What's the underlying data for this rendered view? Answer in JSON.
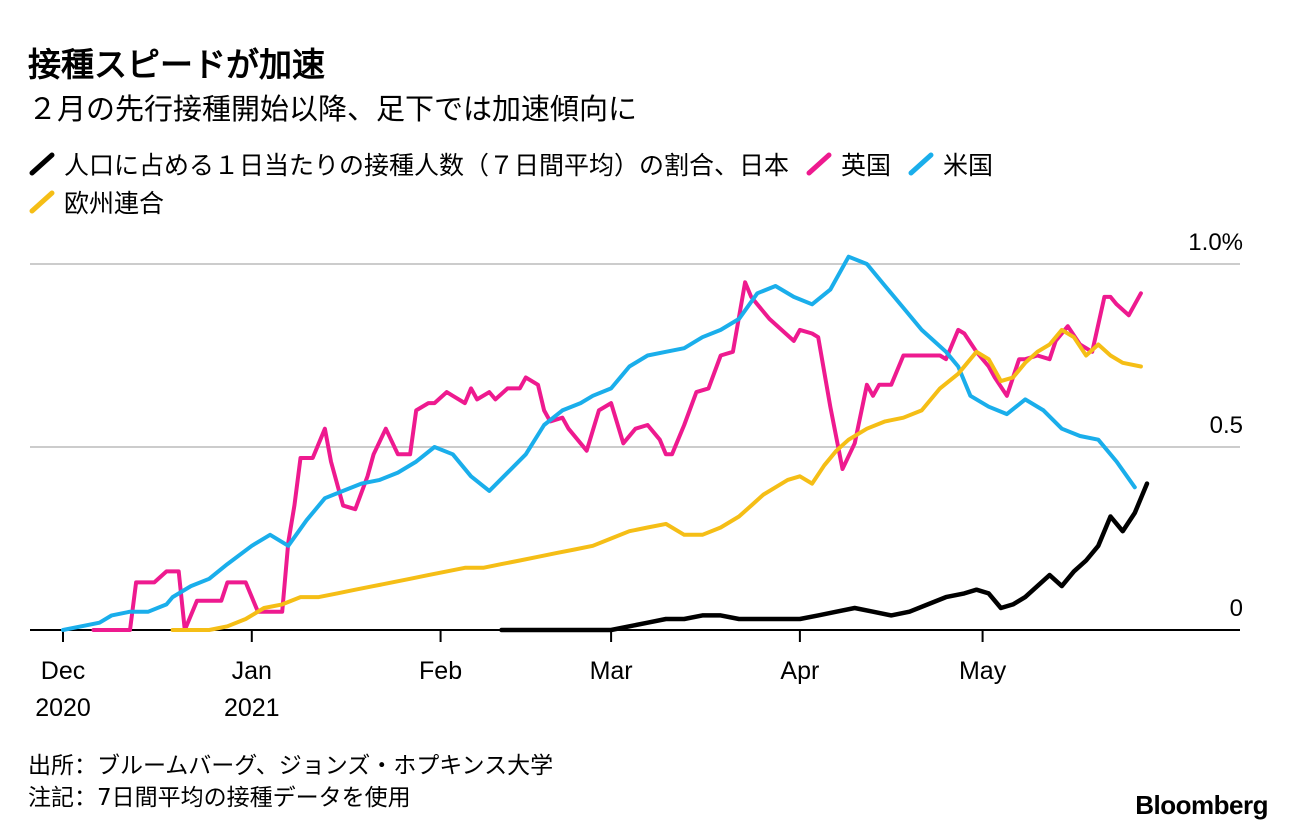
{
  "title": "接種スピードが加速",
  "subtitle": "２月の先行接種開始以降、足下では加速傾向に",
  "legend": {
    "intro": "人口に占める１日当たりの接種人数（７日間平均）の割合、日本",
    "uk": "英国",
    "us": "米国",
    "eu": "欧州連合"
  },
  "colors": {
    "japan": "#000000",
    "uk": "#EE1A8F",
    "us": "#1AAEEB",
    "eu": "#F5BE16",
    "grid": "#cccccc",
    "axis": "#000000"
  },
  "footer": {
    "source": "出所：ブルームバーグ、ジョンズ・ホプキンス大学",
    "note": "注記：7日間平均の接種データを使用"
  },
  "brand": "Bloomberg",
  "chart_data": {
    "type": "line",
    "title": "接種スピードが加速",
    "ylabel": "人口に占める１日当たりの接種人数（７日間平均）の割合",
    "ylim": [
      0,
      1.0
    ],
    "x_unit": "days since 2020-12-01",
    "xlim": [
      0,
      180
    ],
    "y_ticks": [
      {
        "value": 1.0,
        "label": "1.0%"
      },
      {
        "value": 0.5,
        "label": "0.5"
      },
      {
        "value": 0,
        "label": "0"
      }
    ],
    "x_ticks": [
      {
        "day": 0,
        "label": "Dec",
        "sub": "2020"
      },
      {
        "day": 31,
        "label": "Jan",
        "sub": "2021"
      },
      {
        "day": 62,
        "label": "Feb",
        "sub": ""
      },
      {
        "day": 90,
        "label": "Mar",
        "sub": ""
      },
      {
        "day": 121,
        "label": "Apr",
        "sub": ""
      },
      {
        "day": 151,
        "label": "May",
        "sub": ""
      }
    ],
    "series": [
      {
        "key": "uk",
        "name": "英国",
        "x": [
          5,
          11,
          12,
          15,
          17,
          19,
          20,
          22,
          23,
          26,
          27,
          30,
          32,
          34,
          36,
          37,
          38,
          39,
          41,
          43,
          44,
          46,
          48,
          50,
          51,
          53,
          55,
          57,
          58,
          60,
          61,
          63,
          64,
          66,
          67,
          68,
          70,
          71,
          73,
          75,
          76,
          78,
          79,
          80,
          82,
          83,
          85,
          86,
          88,
          90,
          92,
          94,
          96,
          98,
          99,
          100,
          102,
          104,
          106,
          108,
          110,
          112,
          113,
          114,
          116,
          118,
          120,
          121,
          123,
          124,
          126,
          128,
          130,
          132,
          133,
          134,
          136,
          138,
          140,
          141,
          142,
          144,
          145,
          147,
          148,
          150,
          152,
          153,
          155,
          157,
          158,
          160,
          162,
          163,
          165,
          167,
          169,
          171,
          172,
          173,
          175,
          177
        ],
        "values": [
          0.0,
          0.0,
          0.13,
          0.13,
          0.16,
          0.16,
          0.0,
          0.08,
          0.08,
          0.08,
          0.13,
          0.13,
          0.05,
          0.05,
          0.05,
          0.24,
          0.34,
          0.47,
          0.47,
          0.55,
          0.46,
          0.34,
          0.33,
          0.42,
          0.48,
          0.55,
          0.48,
          0.48,
          0.6,
          0.62,
          0.62,
          0.65,
          0.64,
          0.62,
          0.66,
          0.63,
          0.65,
          0.63,
          0.66,
          0.66,
          0.69,
          0.67,
          0.6,
          0.57,
          0.58,
          0.55,
          0.51,
          0.49,
          0.6,
          0.62,
          0.51,
          0.55,
          0.56,
          0.52,
          0.48,
          0.48,
          0.56,
          0.65,
          0.66,
          0.75,
          0.76,
          0.95,
          0.91,
          0.89,
          0.85,
          0.82,
          0.79,
          0.82,
          0.81,
          0.8,
          0.61,
          0.44,
          0.51,
          0.67,
          0.64,
          0.67,
          0.67,
          0.75,
          0.75,
          0.75,
          0.75,
          0.75,
          0.74,
          0.82,
          0.81,
          0.76,
          0.72,
          0.69,
          0.64,
          0.74,
          0.74,
          0.75,
          0.74,
          0.79,
          0.83,
          0.78,
          0.76,
          0.91,
          0.91,
          0.89,
          0.86,
          0.92
        ]
      },
      {
        "key": "us",
        "name": "米国",
        "x": [
          0,
          3,
          6,
          8,
          11,
          14,
          17,
          18,
          21,
          24,
          27,
          31,
          34,
          37,
          40,
          43,
          46,
          49,
          52,
          55,
          58,
          61,
          64,
          67,
          70,
          73,
          76,
          79,
          82,
          85,
          87,
          90,
          93,
          96,
          99,
          102,
          105,
          108,
          111,
          114,
          117,
          120,
          123,
          126,
          129,
          132,
          135,
          138,
          141,
          143,
          145,
          147,
          149,
          152,
          155,
          158,
          161,
          164,
          167,
          170,
          173,
          176
        ],
        "values": [
          0.0,
          0.01,
          0.02,
          0.04,
          0.05,
          0.05,
          0.07,
          0.09,
          0.12,
          0.14,
          0.18,
          0.23,
          0.26,
          0.23,
          0.3,
          0.36,
          0.38,
          0.4,
          0.41,
          0.43,
          0.46,
          0.5,
          0.48,
          0.42,
          0.38,
          0.43,
          0.48,
          0.56,
          0.6,
          0.62,
          0.64,
          0.66,
          0.72,
          0.75,
          0.76,
          0.77,
          0.8,
          0.82,
          0.85,
          0.92,
          0.94,
          0.91,
          0.89,
          0.93,
          1.02,
          1.0,
          0.94,
          0.88,
          0.82,
          0.79,
          0.76,
          0.72,
          0.64,
          0.61,
          0.59,
          0.63,
          0.6,
          0.55,
          0.53,
          0.52,
          0.46,
          0.39
        ]
      },
      {
        "key": "eu",
        "name": "欧州連合",
        "x": [
          18,
          21,
          24,
          27,
          30,
          33,
          36,
          39,
          42,
          45,
          48,
          51,
          54,
          57,
          60,
          63,
          66,
          69,
          72,
          75,
          78,
          81,
          84,
          87,
          90,
          93,
          96,
          99,
          102,
          105,
          108,
          111,
          113,
          115,
          117,
          119,
          121,
          123,
          125,
          127,
          129,
          132,
          135,
          138,
          141,
          144,
          147,
          150,
          152,
          154,
          156,
          158,
          160,
          162,
          164,
          166,
          168,
          170,
          172,
          174,
          177
        ],
        "values": [
          0.0,
          0.0,
          0.0,
          0.01,
          0.03,
          0.06,
          0.07,
          0.09,
          0.09,
          0.1,
          0.11,
          0.12,
          0.13,
          0.14,
          0.15,
          0.16,
          0.17,
          0.17,
          0.18,
          0.19,
          0.2,
          0.21,
          0.22,
          0.23,
          0.25,
          0.27,
          0.28,
          0.29,
          0.26,
          0.26,
          0.28,
          0.31,
          0.34,
          0.37,
          0.39,
          0.41,
          0.42,
          0.4,
          0.45,
          0.49,
          0.52,
          0.55,
          0.57,
          0.58,
          0.6,
          0.66,
          0.7,
          0.76,
          0.74,
          0.68,
          0.69,
          0.73,
          0.76,
          0.78,
          0.82,
          0.8,
          0.75,
          0.78,
          0.75,
          0.73,
          0.72
        ]
      },
      {
        "key": "japan",
        "name": "日本",
        "x": [
          72,
          90,
          93,
          96,
          99,
          102,
          105,
          108,
          111,
          114,
          117,
          121,
          124,
          127,
          130,
          133,
          136,
          139,
          142,
          145,
          148,
          150,
          152,
          154,
          156,
          158,
          160,
          162,
          164,
          166,
          168,
          170,
          172,
          174,
          176,
          178
        ],
        "values": [
          0.0,
          0.0,
          0.01,
          0.02,
          0.03,
          0.03,
          0.04,
          0.04,
          0.03,
          0.03,
          0.03,
          0.03,
          0.04,
          0.05,
          0.06,
          0.05,
          0.04,
          0.05,
          0.07,
          0.09,
          0.1,
          0.11,
          0.1,
          0.06,
          0.07,
          0.09,
          0.12,
          0.15,
          0.12,
          0.16,
          0.19,
          0.23,
          0.31,
          0.27,
          0.32,
          0.4
        ]
      }
    ]
  }
}
